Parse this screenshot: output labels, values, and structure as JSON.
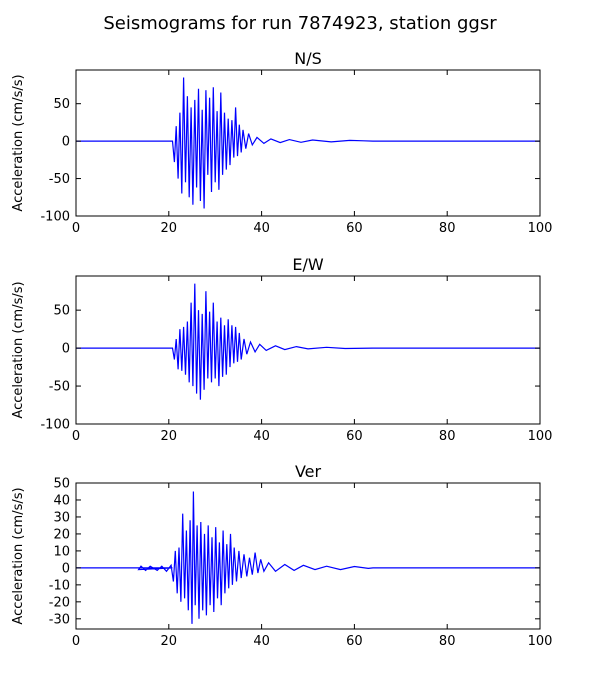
{
  "figure_title": "Seismograms for run 7874923, station ggsr",
  "chart_data": [
    {
      "type": "line",
      "title": "N/S",
      "xlabel": "",
      "ylabel": "Acceleration (cm/s/s)",
      "xlim": [
        0,
        100
      ],
      "ylim": [
        -100,
        95
      ],
      "xticks": [
        0,
        20,
        40,
        60,
        80,
        100
      ],
      "yticks": [
        -100,
        -50,
        0,
        50
      ],
      "color": "#0000ff",
      "grid": false,
      "peaks": [
        [
          21.2,
          -28
        ],
        [
          21.6,
          20
        ],
        [
          22.0,
          -50
        ],
        [
          22.4,
          38
        ],
        [
          22.8,
          -70
        ],
        [
          23.2,
          85
        ],
        [
          23.6,
          -55
        ],
        [
          24.0,
          60
        ],
        [
          24.4,
          -75
        ],
        [
          24.8,
          45
        ],
        [
          25.2,
          -85
        ],
        [
          25.6,
          55
        ],
        [
          26.0,
          -62
        ],
        [
          26.4,
          70
        ],
        [
          26.8,
          -80
        ],
        [
          27.2,
          42
        ],
        [
          27.6,
          -90
        ],
        [
          28.0,
          68
        ],
        [
          28.4,
          -45
        ],
        [
          28.8,
          58
        ],
        [
          29.2,
          -68
        ],
        [
          29.6,
          72
        ],
        [
          30.0,
          -55
        ],
        [
          30.4,
          40
        ],
        [
          30.8,
          -65
        ],
        [
          31.2,
          65
        ],
        [
          31.6,
          -45
        ],
        [
          32.0,
          38
        ],
        [
          32.4,
          -38
        ],
        [
          32.8,
          30
        ],
        [
          33.2,
          -32
        ],
        [
          33.6,
          28
        ],
        [
          34.0,
          -22
        ],
        [
          34.4,
          45
        ],
        [
          34.8,
          -20
        ],
        [
          35.2,
          22
        ],
        [
          35.6,
          -15
        ],
        [
          36.0,
          15
        ],
        [
          36.6,
          -10
        ],
        [
          37.2,
          10
        ],
        [
          38.0,
          -5
        ],
        [
          39.0,
          5
        ],
        [
          40.5,
          -3
        ],
        [
          42.0,
          3
        ],
        [
          44.0,
          -2
        ],
        [
          46.0,
          2
        ],
        [
          48.5,
          -1.5
        ],
        [
          51.0,
          1.5
        ],
        [
          55.0,
          -1
        ],
        [
          59.0,
          1
        ],
        [
          62.0,
          0.5
        ]
      ]
    },
    {
      "type": "line",
      "title": "E/W",
      "xlabel": "",
      "ylabel": "Acceleration (cm/s/s)",
      "xlim": [
        0,
        100
      ],
      "ylim": [
        -100,
        95
      ],
      "xticks": [
        0,
        20,
        40,
        60,
        80,
        100
      ],
      "yticks": [
        -100,
        -50,
        0,
        50
      ],
      "color": "#0000ff",
      "grid": false,
      "peaks": [
        [
          21.2,
          -15
        ],
        [
          21.6,
          12
        ],
        [
          22.0,
          -28
        ],
        [
          22.4,
          25
        ],
        [
          22.8,
          -30
        ],
        [
          23.2,
          28
        ],
        [
          23.6,
          -35
        ],
        [
          24.0,
          35
        ],
        [
          24.4,
          -45
        ],
        [
          24.8,
          60
        ],
        [
          25.2,
          -50
        ],
        [
          25.6,
          85
        ],
        [
          26.0,
          -60
        ],
        [
          26.4,
          50
        ],
        [
          26.8,
          -68
        ],
        [
          27.2,
          45
        ],
        [
          27.6,
          -55
        ],
        [
          28.0,
          75
        ],
        [
          28.4,
          -40
        ],
        [
          28.8,
          48
        ],
        [
          29.2,
          -45
        ],
        [
          29.6,
          60
        ],
        [
          30.0,
          -40
        ],
        [
          30.4,
          35
        ],
        [
          30.8,
          -50
        ],
        [
          31.2,
          40
        ],
        [
          31.6,
          -38
        ],
        [
          32.0,
          30
        ],
        [
          32.4,
          -35
        ],
        [
          32.8,
          38
        ],
        [
          33.2,
          -25
        ],
        [
          33.6,
          30
        ],
        [
          34.0,
          -20
        ],
        [
          34.4,
          28
        ],
        [
          34.8,
          -18
        ],
        [
          35.2,
          20
        ],
        [
          35.6,
          -15
        ],
        [
          36.2,
          12
        ],
        [
          36.8,
          -8
        ],
        [
          37.6,
          8
        ],
        [
          38.6,
          -5
        ],
        [
          39.6,
          5
        ],
        [
          41.0,
          -3
        ],
        [
          43.0,
          3
        ],
        [
          45.0,
          -2
        ],
        [
          47.5,
          2
        ],
        [
          50.0,
          -1
        ],
        [
          54.0,
          1
        ],
        [
          58.0,
          -0.5
        ]
      ]
    },
    {
      "type": "line",
      "title": "Ver",
      "xlabel": "",
      "ylabel": "Acceleration (cm/s/s)",
      "xlim": [
        0,
        100
      ],
      "ylim": [
        -36,
        50
      ],
      "xticks": [
        0,
        20,
        40,
        60,
        80,
        100
      ],
      "yticks": [
        -30,
        -20,
        -10,
        0,
        10,
        20,
        30,
        40,
        50
      ],
      "color": "#0000ff",
      "grid": false,
      "peaks": [
        [
          13.5,
          -1
        ],
        [
          14.0,
          1
        ],
        [
          15.0,
          -1.5
        ],
        [
          16.0,
          1
        ],
        [
          17.5,
          -1.5
        ],
        [
          18.5,
          1
        ],
        [
          19.5,
          -2
        ],
        [
          20.5,
          1.5
        ],
        [
          21.0,
          -8
        ],
        [
          21.4,
          10
        ],
        [
          21.8,
          -15
        ],
        [
          22.2,
          12
        ],
        [
          22.6,
          -20
        ],
        [
          23.0,
          32
        ],
        [
          23.4,
          -18
        ],
        [
          23.8,
          22
        ],
        [
          24.2,
          -25
        ],
        [
          24.6,
          28
        ],
        [
          25.0,
          -33
        ],
        [
          25.3,
          45
        ],
        [
          25.7,
          -22
        ],
        [
          26.1,
          25
        ],
        [
          26.5,
          -30
        ],
        [
          26.9,
          27
        ],
        [
          27.3,
          -25
        ],
        [
          27.7,
          20
        ],
        [
          28.1,
          -28
        ],
        [
          28.5,
          25
        ],
        [
          28.9,
          -22
        ],
        [
          29.3,
          18
        ],
        [
          29.7,
          -26
        ],
        [
          30.1,
          24
        ],
        [
          30.5,
          -18
        ],
        [
          30.9,
          15
        ],
        [
          31.3,
          -22
        ],
        [
          31.7,
          22
        ],
        [
          32.1,
          -15
        ],
        [
          32.5,
          14
        ],
        [
          32.9,
          -12
        ],
        [
          33.3,
          20
        ],
        [
          33.7,
          -10
        ],
        [
          34.1,
          12
        ],
        [
          34.6,
          -8
        ],
        [
          35.1,
          10
        ],
        [
          35.6,
          -6
        ],
        [
          36.2,
          8
        ],
        [
          36.8,
          -5
        ],
        [
          37.4,
          6
        ],
        [
          38.0,
          -4
        ],
        [
          38.6,
          9
        ],
        [
          39.2,
          -3
        ],
        [
          39.8,
          5
        ],
        [
          40.5,
          -2
        ],
        [
          41.5,
          3
        ],
        [
          43.0,
          -2
        ],
        [
          45.0,
          2
        ],
        [
          47.0,
          -1.5
        ],
        [
          49.0,
          1.5
        ],
        [
          51.5,
          -1
        ],
        [
          54.0,
          1
        ],
        [
          57.0,
          -1
        ],
        [
          60.0,
          0.8
        ],
        [
          63.0,
          -0.3
        ]
      ]
    }
  ]
}
